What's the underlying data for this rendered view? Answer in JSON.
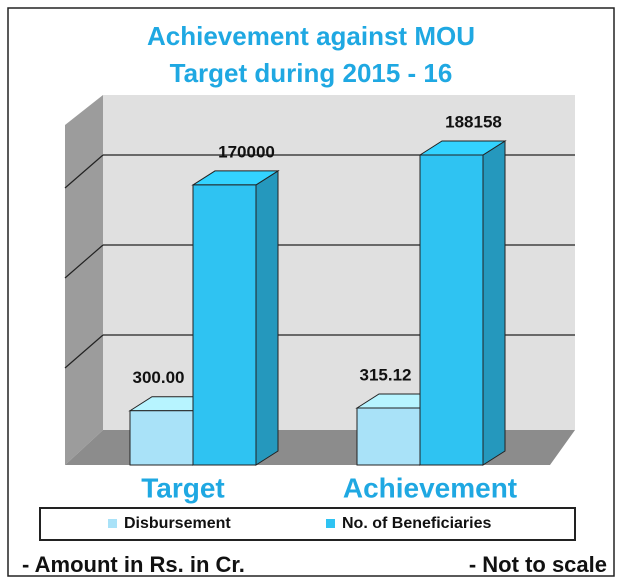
{
  "chart_data": {
    "type": "bar3d",
    "title": [
      "Achievement against MOU",
      "Target during  2015 - 16"
    ],
    "categories": [
      "Target",
      "Achievement"
    ],
    "series": [
      {
        "name": "Disbursement",
        "color": "#a9e2f8",
        "values": [
          300,
          315.12
        ],
        "value_labels": [
          "300.00",
          "315.12"
        ]
      },
      {
        "name": "No. of Beneficiaries",
        "color": "#2fc3f2",
        "values": [
          170000,
          188158
        ]
      }
    ],
    "notes": [
      "- Amount in Rs. in Cr.",
      "- Not  to scale"
    ]
  }
}
